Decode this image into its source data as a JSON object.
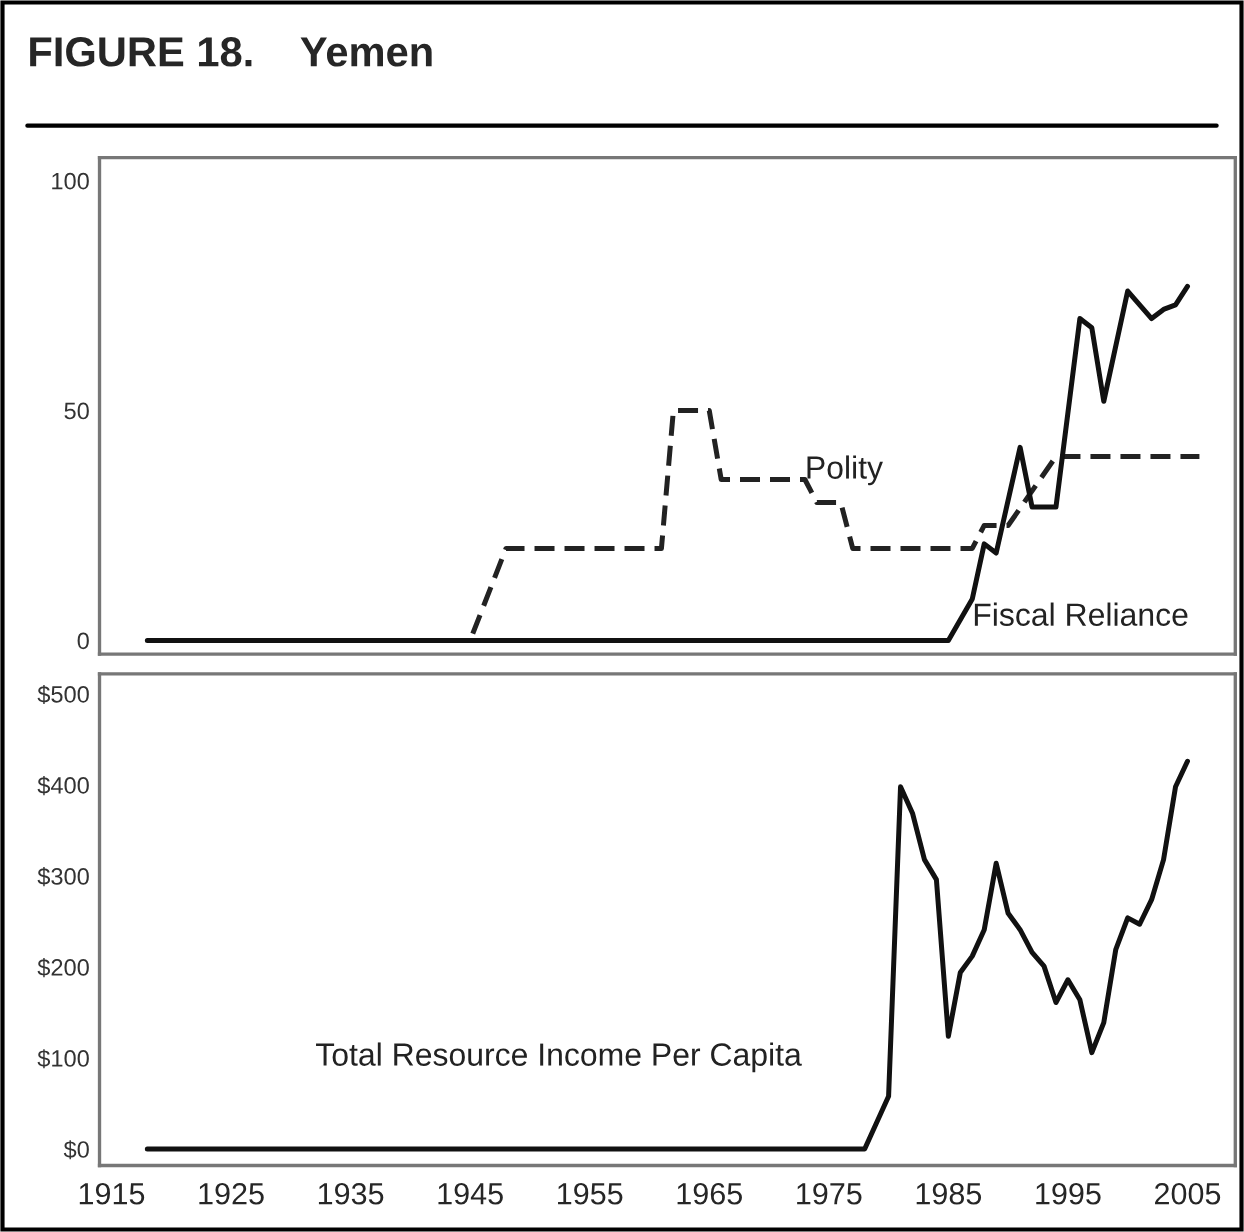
{
  "chart_data": [
    {
      "type": "line",
      "title": "FIGURE 18.    Yemen",
      "xlim": [
        1914,
        2009
      ],
      "ylim": [
        -3,
        105
      ],
      "yticks": [
        0,
        50,
        100
      ],
      "tick_labels": "y",
      "grid": false,
      "legend": false,
      "series": [
        {
          "color": "#222222",
          "line_style": "dashed",
          "x": [
            1918,
            1945,
            1948,
            1961,
            1962,
            1965,
            1966,
            1973,
            1974,
            1976,
            1977,
            1987,
            1988,
            1990,
            1994,
            2006
          ],
          "values": [
            0,
            0,
            20,
            20,
            50,
            50,
            35,
            35,
            30,
            30,
            20,
            20,
            25,
            25,
            40,
            40
          ]
        },
        {
          "color": "#111111",
          "line_style": "solid",
          "x": [
            1918,
            1985,
            1987,
            1988,
            1989,
            1991,
            1992,
            1994,
            1996,
            1997,
            1998,
            2000,
            2001,
            2002,
            2003,
            2004,
            2005
          ],
          "values": [
            0,
            0,
            9,
            21,
            19,
            42,
            29,
            29,
            70,
            68,
            52,
            76,
            73,
            70,
            72,
            73,
            77
          ]
        }
      ],
      "annotations": [
        {
          "text": "Polity",
          "x": 1973,
          "y": 37
        },
        {
          "text": "Fiscal Reliance",
          "x": 1987,
          "y": 5
        }
      ]
    },
    {
      "type": "line",
      "xlim": [
        1914,
        2009
      ],
      "ylim": [
        -18,
        522
      ],
      "xticks": [
        1915,
        1925,
        1935,
        1945,
        1955,
        1965,
        1975,
        1985,
        1995,
        2005
      ],
      "yticks": [
        {
          "value": 0,
          "label": "$0"
        },
        {
          "value": 100,
          "label": "$100"
        },
        {
          "value": 200,
          "label": "$200"
        },
        {
          "value": 300,
          "label": "$300"
        },
        {
          "value": 400,
          "label": "$400"
        },
        {
          "value": 500,
          "label": "$500"
        }
      ],
      "grid": false,
      "legend": false,
      "series": [
        {
          "color": "#111111",
          "line_style": "solid",
          "x": [
            1918,
            1978,
            1980,
            1981,
            1982,
            1983,
            1984,
            1985,
            1986,
            1987,
            1988,
            1989,
            1990,
            1991,
            1992,
            1993,
            1994,
            1995,
            1996,
            1997,
            1998,
            1999,
            2000,
            2001,
            2002,
            2003,
            2004,
            2005
          ],
          "values": [
            0,
            0,
            58,
            398,
            369,
            318,
            296,
            124,
            194,
            212,
            241,
            314,
            259,
            241,
            216,
            201,
            161,
            186,
            164,
            106,
            139,
            219,
            254,
            247,
            274,
            318,
            398,
            426
          ]
        }
      ],
      "annotations": [
        "Total Resource Income Per Capita"
      ]
    }
  ]
}
